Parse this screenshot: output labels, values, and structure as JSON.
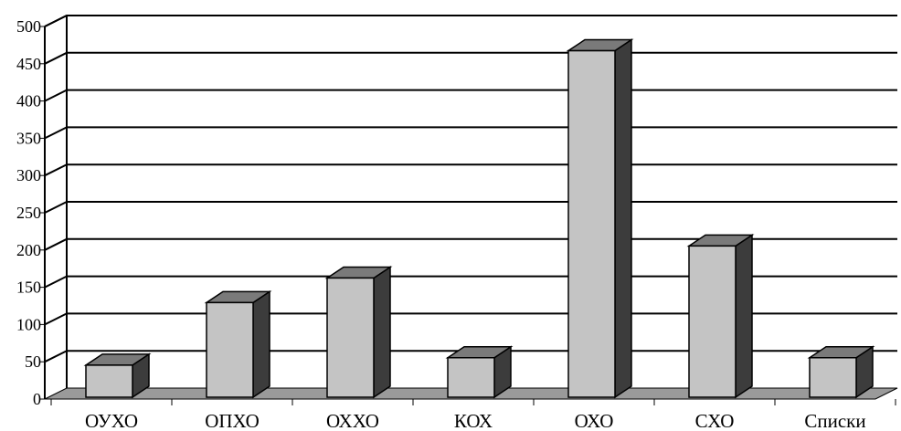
{
  "chart_data": {
    "type": "bar",
    "title": "",
    "xlabel": "",
    "ylabel": "",
    "categories": [
      "ОУХО",
      "ОПХО",
      "ОХХО",
      "КОХ",
      "ОХО",
      "СХО",
      "Списки"
    ],
    "values": [
      43,
      127,
      160,
      53,
      465,
      203,
      53
    ],
    "ylim": [
      0,
      500
    ],
    "yticks": [
      0,
      50,
      100,
      150,
      200,
      250,
      300,
      350,
      400,
      450,
      500
    ],
    "grid": true,
    "legend": "none",
    "three_d": true,
    "colors": {
      "bar_front": "#c4c4c4",
      "bar_top": "#7a7a7a",
      "bar_side": "#3c3c3c",
      "floor": "#9a9a9a",
      "grid": "#000000"
    }
  }
}
